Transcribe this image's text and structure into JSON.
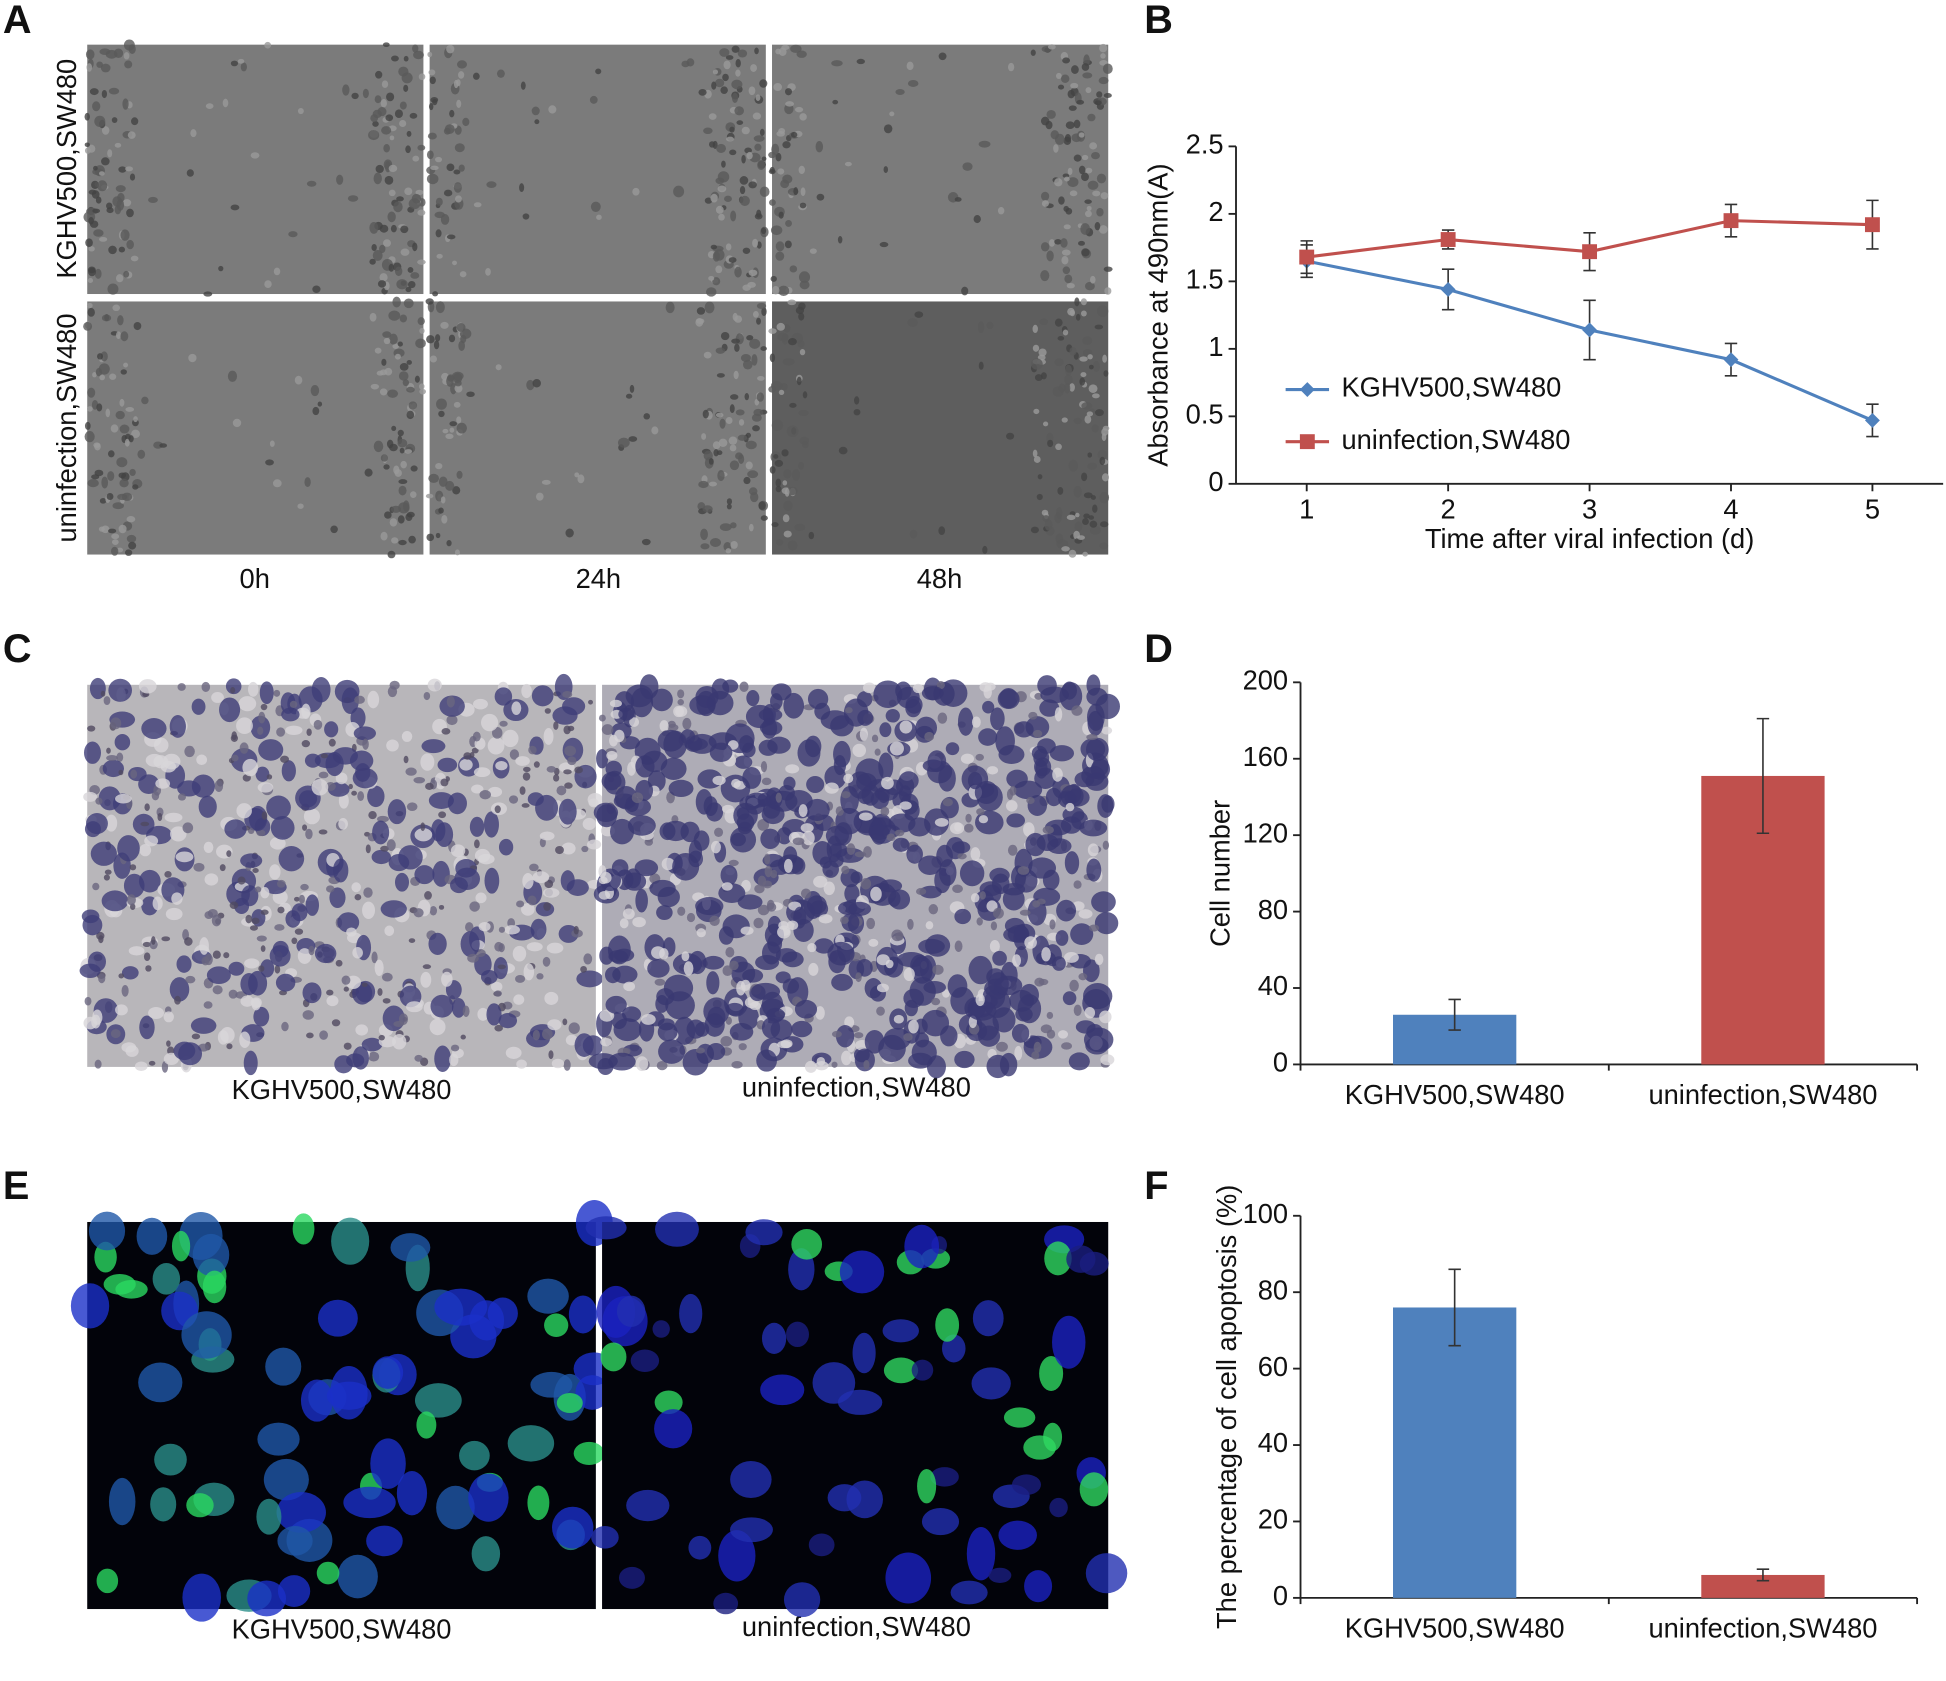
{
  "panels": {
    "labels": [
      "A",
      "B",
      "C",
      "D",
      "E",
      "F"
    ]
  },
  "figure_a": {
    "rows": [
      "KGHV500,SW480",
      "uninfection,SW480"
    ],
    "columns": [
      "0h",
      "24h",
      "48h"
    ]
  },
  "figure_c": {
    "captions": [
      "KGHV500,SW480",
      "uninfection,SW480"
    ]
  },
  "figure_e": {
    "captions": [
      "KGHV500,SW480",
      "uninfection,SW480"
    ]
  },
  "chart_data": [
    {
      "type": "line",
      "ylabel": "Absorbance at 490nm(A)",
      "xlabel": "Time after viral infection (d)",
      "x": [
        1,
        2,
        3,
        4,
        5
      ],
      "xlim": [
        0.5,
        5.5
      ],
      "xticks": [
        1,
        2,
        3,
        4,
        5
      ],
      "ylim": [
        0,
        2.5
      ],
      "yticks": [
        0,
        0.5,
        1,
        1.5,
        2,
        2.5
      ],
      "legend": "lower left",
      "series": [
        {
          "name": "KGHV500,SW480",
          "color": "#4f81bd",
          "marker": "diamond",
          "values": [
            1.65,
            1.44,
            1.14,
            0.92,
            0.47
          ],
          "errors": [
            0.12,
            0.15,
            0.22,
            0.12,
            0.12
          ]
        },
        {
          "name": "uninfection,SW480",
          "color": "#c0504d",
          "marker": "square",
          "values": [
            1.68,
            1.81,
            1.72,
            1.95,
            1.92
          ],
          "errors": [
            0.12,
            0.07,
            0.14,
            0.12,
            0.18
          ]
        }
      ]
    },
    {
      "type": "bar",
      "ylabel": "Cell number",
      "categories": [
        "KGHV500,SW480",
        "uninfection,SW480"
      ],
      "values": [
        26,
        151
      ],
      "errors": [
        8,
        30
      ],
      "colors": [
        "#4f81bd",
        "#c0504d"
      ],
      "ylim": [
        0,
        200
      ],
      "yticks": [
        0,
        40,
        80,
        120,
        160,
        200
      ]
    },
    {
      "type": "bar",
      "ylabel": "The percentage of cell apoptosis (%)",
      "categories": [
        "KGHV500,SW480",
        "uninfection,SW480"
      ],
      "values": [
        76,
        6
      ],
      "errors": [
        10,
        1.5
      ],
      "colors": [
        "#4f81bd",
        "#c0504d"
      ],
      "ylim": [
        0,
        100
      ],
      "yticks": [
        0,
        20,
        40,
        60,
        80,
        100
      ]
    }
  ]
}
